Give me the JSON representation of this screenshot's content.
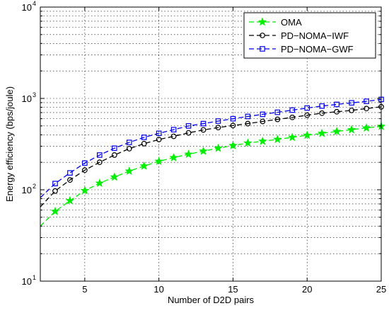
{
  "chart_data": {
    "type": "line",
    "title": "",
    "xlabel": "Number of D2D pairs",
    "ylabel": "Energy efficiency (bps/joule)",
    "xlim": [
      2,
      25
    ],
    "ylim": [
      10,
      10000
    ],
    "yscale": "log",
    "grid": true,
    "legend_position": "top-right",
    "x_ticks": [
      5,
      10,
      15,
      20,
      25
    ],
    "y_ticks": [
      {
        "value": 10,
        "base": "10",
        "exp": "1"
      },
      {
        "value": 100,
        "base": "10",
        "exp": "2"
      },
      {
        "value": 1000,
        "base": "10",
        "exp": "3"
      },
      {
        "value": 10000,
        "base": "10",
        "exp": "4"
      }
    ],
    "x": [
      2,
      3,
      4,
      5,
      6,
      7,
      8,
      9,
      10,
      11,
      12,
      13,
      14,
      15,
      16,
      17,
      18,
      19,
      20,
      21,
      22,
      23,
      24,
      25
    ],
    "series": [
      {
        "name": "OMA",
        "color": "#00ee00",
        "marker": "star",
        "values": [
          40,
          58,
          76,
          98,
          118,
          138,
          160,
          182,
          205,
          225,
          245,
          265,
          285,
          305,
          325,
          340,
          356,
          375,
          395,
          415,
          435,
          455,
          475,
          495
        ]
      },
      {
        "name": "PD−NOMA−IWF",
        "color": "#000000",
        "marker": "circle",
        "values": [
          65,
          97,
          128,
          164,
          200,
          240,
          282,
          320,
          355,
          385,
          420,
          452,
          480,
          505,
          530,
          560,
          590,
          620,
          655,
          690,
          715,
          740,
          775,
          810
        ]
      },
      {
        "name": "PD−NOMA−GWF",
        "color": "#0000ee",
        "marker": "square",
        "values": [
          82,
          117,
          153,
          196,
          240,
          285,
          330,
          375,
          415,
          455,
          500,
          530,
          565,
          600,
          635,
          670,
          705,
          745,
          785,
          825,
          860,
          895,
          930,
          975
        ]
      }
    ]
  }
}
